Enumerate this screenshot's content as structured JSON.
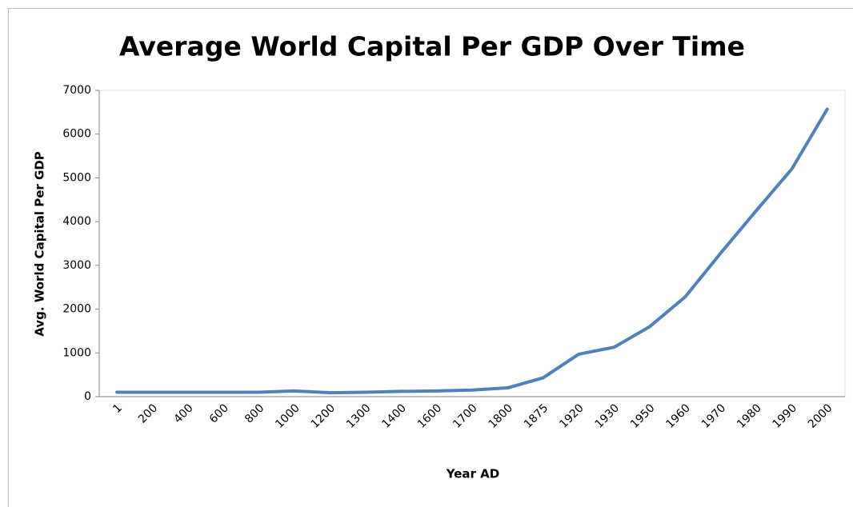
{
  "chart_data": {
    "type": "line",
    "title": "Average World Capital Per GDP Over Time",
    "x_label": "Year AD",
    "y_label": "Avg. World Capital Per GDP",
    "categories": [
      "1",
      "200",
      "400",
      "600",
      "800",
      "1000",
      "1200",
      "1300",
      "1400",
      "1600",
      "1700",
      "1800",
      "1875",
      "1920",
      "1930",
      "1950",
      "1960",
      "1970",
      "1980",
      "1990",
      "2000"
    ],
    "series": [
      {
        "name": "Avg. World Capital Per GDP",
        "color": "#4f81bd",
        "values": [
          100,
          100,
          100,
          100,
          100,
          130,
          90,
          100,
          120,
          130,
          150,
          200,
          430,
          970,
          1130,
          1600,
          2280,
          3280,
          4250,
          5200,
          6570
        ]
      }
    ],
    "ylim": [
      0,
      7000
    ],
    "yticks": [
      0,
      1000,
      2000,
      3000,
      4000,
      5000,
      6000,
      7000
    ]
  }
}
